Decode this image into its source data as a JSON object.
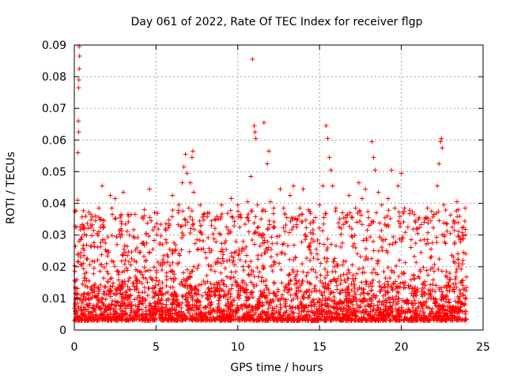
{
  "chart_data": {
    "type": "scatter",
    "title": "Day 061 of 2022, Rate Of TEC Index for receiver flgp",
    "xlabel": "GPS time / hours",
    "ylabel": "ROTI / TECUs",
    "xlim": [
      0,
      25
    ],
    "ylim": [
      0,
      0.09
    ],
    "x_ticks": [
      0,
      5,
      10,
      15,
      20,
      25
    ],
    "x_tick_labels": [
      "0",
      "5",
      "10",
      "15",
      "20",
      "25"
    ],
    "y_ticks": [
      0,
      0.01,
      0.02,
      0.03,
      0.04,
      0.05,
      0.06,
      0.07,
      0.08,
      0.09
    ],
    "y_tick_labels": [
      "0",
      "0.01",
      "0.02",
      "0.03",
      "0.04",
      "0.05",
      "0.06",
      "0.07",
      "0.08",
      "0.09"
    ],
    "grid": true,
    "marker": "+",
    "color": "#ff0000",
    "series": [
      {
        "points": [
          [
            0.05,
            0.0085
          ],
          [
            0.1,
            0.0115
          ],
          [
            0.15,
            0.016
          ],
          [
            0.2,
            0.041
          ],
          [
            0.22,
            0.056
          ],
          [
            0.25,
            0.066
          ],
          [
            0.27,
            0.0625
          ],
          [
            0.3,
            0.0895
          ],
          [
            0.32,
            0.0865
          ],
          [
            0.3,
            0.0825
          ],
          [
            0.28,
            0.079
          ],
          [
            0.26,
            0.0765
          ],
          [
            0.35,
            0.0325
          ],
          [
            0.4,
            0.0285
          ],
          [
            0.45,
            0.0205
          ],
          [
            0.5,
            0.0145
          ],
          [
            0.6,
            0.0105
          ],
          [
            0.7,
            0.0095
          ],
          [
            0.8,
            0.0225
          ],
          [
            0.9,
            0.0155
          ],
          [
            1.0,
            0.0265
          ],
          [
            1.1,
            0.0125
          ],
          [
            1.2,
            0.0195
          ],
          [
            1.3,
            0.0345
          ],
          [
            1.4,
            0.0305
          ],
          [
            1.5,
            0.0385
          ],
          [
            1.6,
            0.0325
          ],
          [
            1.7,
            0.0455
          ],
          [
            1.8,
            0.0345
          ],
          [
            1.9,
            0.0275
          ],
          [
            2.0,
            0.0185
          ],
          [
            2.1,
            0.0245
          ],
          [
            2.2,
            0.0425
          ],
          [
            2.3,
            0.0385
          ],
          [
            2.4,
            0.0215
          ],
          [
            2.5,
            0.0415
          ],
          [
            2.6,
            0.0295
          ],
          [
            2.7,
            0.0175
          ],
          [
            2.8,
            0.0355
          ],
          [
            2.9,
            0.0335
          ],
          [
            3.0,
            0.0435
          ],
          [
            3.1,
            0.0245
          ],
          [
            3.2,
            0.0195
          ],
          [
            3.3,
            0.0155
          ],
          [
            3.5,
            0.0225
          ],
          [
            3.6,
            0.0295
          ],
          [
            3.8,
            0.0215
          ],
          [
            4.0,
            0.0185
          ],
          [
            4.2,
            0.0275
          ],
          [
            4.4,
            0.0305
          ],
          [
            4.6,
            0.0445
          ],
          [
            4.7,
            0.0345
          ],
          [
            4.8,
            0.0255
          ],
          [
            5.0,
            0.0165
          ],
          [
            5.2,
            0.0125
          ],
          [
            5.4,
            0.0205
          ],
          [
            5.6,
            0.0285
          ],
          [
            5.8,
            0.0335
          ],
          [
            6.0,
            0.0425
          ],
          [
            6.2,
            0.0255
          ],
          [
            6.4,
            0.0395
          ],
          [
            6.6,
            0.0465
          ],
          [
            6.7,
            0.0515
          ],
          [
            6.8,
            0.0555
          ],
          [
            6.9,
            0.0495
          ],
          [
            7.0,
            0.0385
          ],
          [
            7.1,
            0.0465
          ],
          [
            7.2,
            0.0545
          ],
          [
            7.25,
            0.0565
          ],
          [
            7.3,
            0.0435
          ],
          [
            7.5,
            0.0285
          ],
          [
            7.7,
            0.0395
          ],
          [
            7.9,
            0.0365
          ],
          [
            8.0,
            0.0245
          ],
          [
            8.2,
            0.0205
          ],
          [
            8.4,
            0.0345
          ],
          [
            8.6,
            0.0185
          ],
          [
            8.8,
            0.0225
          ],
          [
            9.0,
            0.0395
          ],
          [
            9.2,
            0.0275
          ],
          [
            9.4,
            0.0305
          ],
          [
            9.6,
            0.0415
          ],
          [
            9.8,
            0.0245
          ],
          [
            10.0,
            0.0395
          ],
          [
            10.2,
            0.0355
          ],
          [
            10.4,
            0.0255
          ],
          [
            10.6,
            0.0405
          ],
          [
            10.8,
            0.0485
          ],
          [
            10.9,
            0.0855
          ],
          [
            11.0,
            0.0645
          ],
          [
            11.05,
            0.0625
          ],
          [
            11.1,
            0.0605
          ],
          [
            11.2,
            0.0395
          ],
          [
            11.3,
            0.0305
          ],
          [
            11.5,
            0.0375
          ],
          [
            11.6,
            0.0655
          ],
          [
            11.8,
            0.0525
          ],
          [
            11.9,
            0.0565
          ],
          [
            12.0,
            0.0405
          ],
          [
            12.2,
            0.0385
          ],
          [
            12.4,
            0.0295
          ],
          [
            12.6,
            0.0445
          ],
          [
            12.8,
            0.0385
          ],
          [
            13.0,
            0.0355
          ],
          [
            13.2,
            0.0425
          ],
          [
            13.4,
            0.0455
          ],
          [
            13.6,
            0.0325
          ],
          [
            13.8,
            0.0385
          ],
          [
            14.0,
            0.0445
          ],
          [
            14.2,
            0.0295
          ],
          [
            14.4,
            0.0375
          ],
          [
            14.6,
            0.0345
          ],
          [
            14.8,
            0.0255
          ],
          [
            15.0,
            0.0395
          ],
          [
            15.2,
            0.0455
          ],
          [
            15.4,
            0.0645
          ],
          [
            15.5,
            0.0605
          ],
          [
            15.6,
            0.0545
          ],
          [
            15.7,
            0.0505
          ],
          [
            15.8,
            0.0455
          ],
          [
            16.0,
            0.0385
          ],
          [
            16.2,
            0.0325
          ],
          [
            16.4,
            0.0275
          ],
          [
            16.6,
            0.0355
          ],
          [
            16.8,
            0.0425
          ],
          [
            17.0,
            0.0355
          ],
          [
            17.2,
            0.0385
          ],
          [
            17.4,
            0.0465
          ],
          [
            17.6,
            0.0415
          ],
          [
            17.8,
            0.0445
          ],
          [
            18.0,
            0.0355
          ],
          [
            18.2,
            0.0595
          ],
          [
            18.3,
            0.0545
          ],
          [
            18.4,
            0.0505
          ],
          [
            18.6,
            0.0435
          ],
          [
            18.8,
            0.0395
          ],
          [
            19.0,
            0.0355
          ],
          [
            19.2,
            0.0415
          ],
          [
            19.4,
            0.0505
          ],
          [
            19.6,
            0.0385
          ],
          [
            19.8,
            0.0455
          ],
          [
            20.0,
            0.0495
          ],
          [
            20.2,
            0.0385
          ],
          [
            20.4,
            0.0325
          ],
          [
            20.6,
            0.0285
          ],
          [
            20.8,
            0.0365
          ],
          [
            21.0,
            0.0305
          ],
          [
            21.2,
            0.0245
          ],
          [
            21.4,
            0.0285
          ],
          [
            21.6,
            0.0385
          ],
          [
            21.8,
            0.0345
          ],
          [
            22.0,
            0.0365
          ],
          [
            22.2,
            0.0455
          ],
          [
            22.3,
            0.0525
          ],
          [
            22.4,
            0.0595
          ],
          [
            22.45,
            0.0605
          ],
          [
            22.5,
            0.0575
          ],
          [
            22.6,
            0.0395
          ],
          [
            22.8,
            0.0335
          ],
          [
            23.0,
            0.0305
          ],
          [
            23.2,
            0.0345
          ],
          [
            23.4,
            0.0405
          ],
          [
            23.6,
            0.0285
          ],
          [
            23.8,
            0.0245
          ],
          [
            23.9,
            0.0385
          ]
        ]
      }
    ],
    "noise_band": {
      "x_range": [
        0,
        24
      ],
      "y_range": [
        0.003,
        0.02
      ],
      "count": 2600
    }
  }
}
